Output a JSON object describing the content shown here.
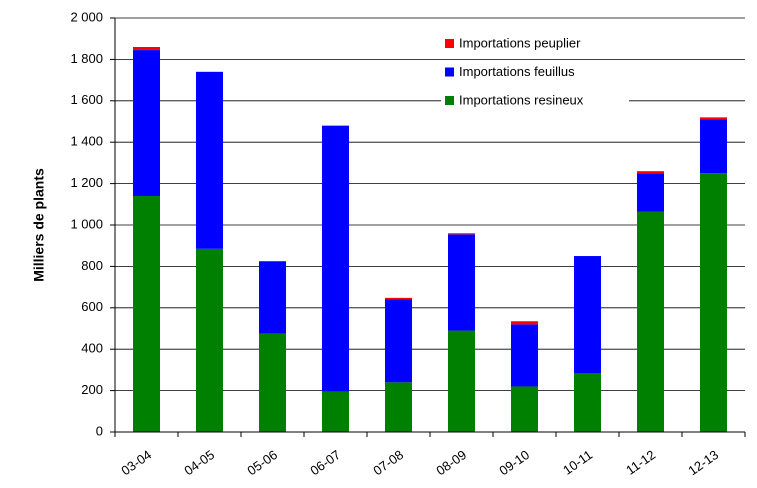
{
  "chart_data": {
    "type": "stacked_bar",
    "y_label": "Milliers de plants",
    "categories": [
      "03-04",
      "04-05",
      "05-06",
      "06-07",
      "07-08",
      "08-09",
      "09-10",
      "10-11",
      "11-12",
      "12-13"
    ],
    "series": [
      {
        "name": "Importations resineux",
        "color": "#008000",
        "values": [
          1140,
          885,
          475,
          195,
          240,
          490,
          220,
          285,
          1065,
          1250
        ]
      },
      {
        "name": "Importations feuillus",
        "color": "#0000ff",
        "values": [
          705,
          855,
          350,
          1285,
          400,
          465,
          300,
          565,
          185,
          260
        ]
      },
      {
        "name": "Importations peuplier",
        "color": "#ff0000",
        "values": [
          15,
          0,
          0,
          0,
          8,
          5,
          15,
          0,
          10,
          10
        ]
      }
    ],
    "ylim": [
      0,
      2000
    ],
    "yticks": [
      0,
      200,
      400,
      600,
      800,
      {
        "value": 1000,
        "label": "1 000"
      },
      {
        "value": 1200,
        "label": "1 200"
      },
      {
        "value": 1400,
        "label": "1 400"
      },
      {
        "value": 1600,
        "label": "1 600"
      },
      {
        "value": 1800,
        "label": "1 800"
      },
      {
        "value": 2000,
        "label": "2 000"
      }
    ],
    "grid": true,
    "legend": "upper right"
  }
}
